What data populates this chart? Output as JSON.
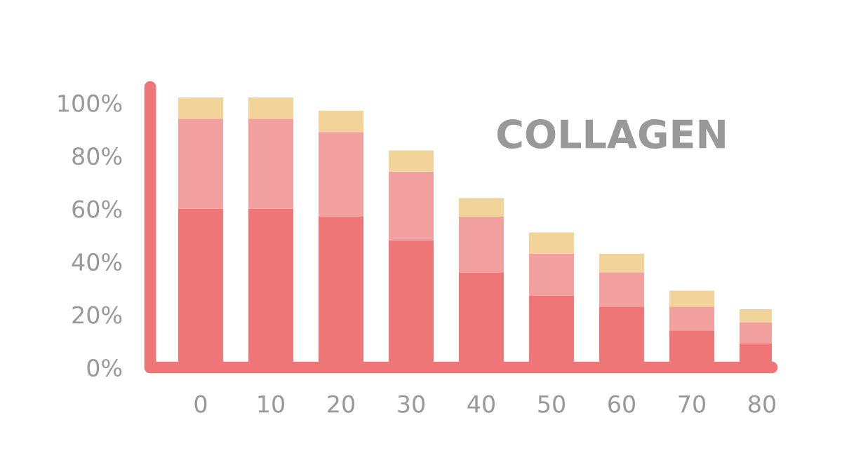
{
  "chart_data": {
    "type": "bar",
    "title": "COLLAGEN",
    "stacked": true,
    "categories": [
      "0",
      "10",
      "20",
      "30",
      "40",
      "50",
      "60",
      "70",
      "80"
    ],
    "series": [
      {
        "color": "#ee7676",
        "values": [
          60,
          60,
          57,
          48,
          36,
          27,
          23,
          14,
          9
        ]
      },
      {
        "color": "#f2a0a0",
        "values": [
          34,
          34,
          32,
          26,
          21,
          16,
          13,
          9,
          8
        ]
      },
      {
        "color": "#f2d49b",
        "values": [
          8,
          8,
          8,
          8,
          7,
          8,
          7,
          6,
          5
        ]
      }
    ],
    "ylim": [
      0,
      106
    ],
    "yticks": [
      {
        "value": 0,
        "label": "0%"
      },
      {
        "value": 20,
        "label": "20%"
      },
      {
        "value": 40,
        "label": "40%"
      },
      {
        "value": 60,
        "label": "60%"
      },
      {
        "value": 80,
        "label": "80%"
      },
      {
        "value": 100,
        "label": "100%"
      }
    ],
    "grid": false,
    "legend": false
  }
}
